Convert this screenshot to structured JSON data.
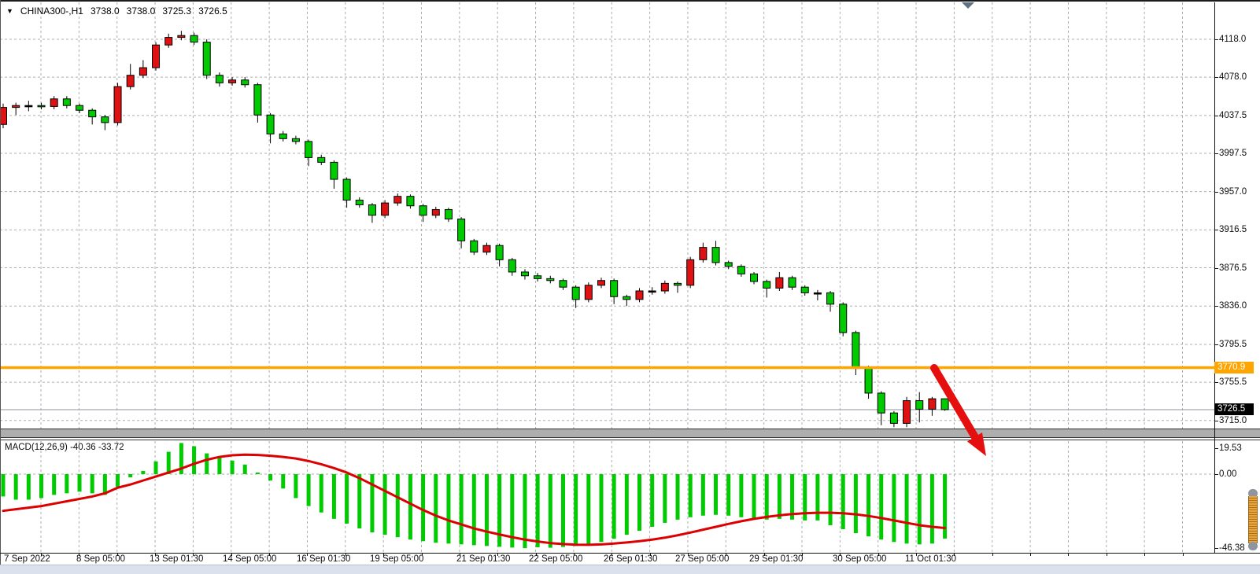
{
  "title": {
    "symbol_period": "CHINA300-,H1",
    "open": "3738.0",
    "high": "3738.0",
    "low": "3725.3",
    "close": "3726.5"
  },
  "price_axis": {
    "labels": [
      "4118.0",
      "4078.0",
      "4037.5",
      "3997.5",
      "3957.0",
      "3916.5",
      "3876.5",
      "3836.0",
      "3795.5",
      "3755.5",
      "3715.0"
    ],
    "hline_badge": "3770.9",
    "bid_badge": "3726.5"
  },
  "macd_panel": {
    "label": "MACD(12,26,9) -40.36 -33.72",
    "axis_labels": [
      "19.53",
      "0.00",
      "-46.38"
    ]
  },
  "time_axis": {
    "labels": [
      "7 Sep 2022",
      "8 Sep 05:00",
      "13 Sep 01:30",
      "14 Sep 05:00",
      "16 Sep 01:30",
      "19 Sep 05:00",
      "21 Sep 01:30",
      "22 Sep 05:00",
      "26 Sep 01:30",
      "27 Sep 05:00",
      "29 Sep 01:30",
      "30 Sep 05:00",
      "11 Oct 01:30"
    ]
  },
  "colors": {
    "bull_candle": "#DE1212",
    "bear_candle": "#00CB00",
    "candle_outline": "#000000",
    "macd_histogram": "#00CB00",
    "macd_signal": "#DD0000",
    "hline": "#FFA500",
    "grid": "#aeaeae",
    "bid_line": "#8e959e",
    "arrow": "#e50f0f"
  },
  "annotations": {
    "arrow": "red-down-arrow pointing to continued decline"
  },
  "chart_data": {
    "type": "candlestick",
    "symbol": "CHINA300-",
    "timeframe": "H1",
    "note": "red = bullish, green = bearish (CN convention); price pane + MACD(12,26,9) pane",
    "price_axis_ticks": [
      4118.0,
      4078.0,
      4037.5,
      3997.5,
      3957.0,
      3916.5,
      3876.5,
      3836.0,
      3795.5,
      3755.5,
      3715.0
    ],
    "x_labels": [
      "7 Sep 2022",
      "8 Sep 05:00",
      "13 Sep 01:30",
      "14 Sep 05:00",
      "16 Sep 01:30",
      "19 Sep 05:00",
      "21 Sep 01:30",
      "22 Sep 05:00",
      "26 Sep 01:30",
      "27 Sep 05:00",
      "29 Sep 01:30",
      "30 Sep 05:00",
      "11 Oct 01:30"
    ],
    "overlays": {
      "horizontal_line": 3770.9,
      "bid_line": 3726.5
    },
    "candles": {
      "open": [
        4028,
        4046,
        4048,
        4048,
        4047,
        4055,
        4048,
        4043,
        4036,
        4030,
        4068,
        4080,
        4088,
        4112,
        4120,
        4122,
        4115,
        4080,
        4072,
        4075,
        4070,
        4038,
        4018,
        4013,
        4010,
        3993,
        3988,
        3970,
        3948,
        3943,
        3932,
        3945,
        3952,
        3942,
        3932,
        3938,
        3928,
        3905,
        3893,
        3900,
        3885,
        3872,
        3868,
        3865,
        3863,
        3856,
        3843,
        3858,
        3863,
        3846,
        3843,
        3852,
        3852,
        3860,
        3858,
        3885,
        3898,
        3882,
        3878,
        3870,
        3862,
        3855,
        3866,
        3856,
        3850,
        3850,
        3838,
        3808,
        3771,
        3744,
        3723,
        3712,
        3736,
        3727,
        3738
      ],
      "high": [
        4050,
        4051,
        4053,
        4051,
        4058,
        4058,
        4050,
        4045,
        4038,
        4072,
        4092,
        4096,
        4115,
        4124,
        4127,
        4125,
        4118,
        4083,
        4078,
        4078,
        4072,
        4040,
        4021,
        4016,
        4012,
        3996,
        3990,
        3972,
        3951,
        3945,
        3948,
        3955,
        3954,
        3944,
        3941,
        3940,
        3930,
        3907,
        3903,
        3902,
        3887,
        3875,
        3871,
        3868,
        3865,
        3858,
        3861,
        3866,
        3865,
        3848,
        3855,
        3856,
        3863,
        3862,
        3888,
        3903,
        3905,
        3884,
        3880,
        3872,
        3864,
        3872,
        3868,
        3858,
        3853,
        3852,
        3840,
        3810,
        3773,
        3746,
        3725,
        3740,
        3745,
        3740,
        3738
      ],
      "low": [
        4024,
        4038,
        4042,
        4044,
        4044,
        4045,
        4040,
        4028,
        4022,
        4027,
        4065,
        4077,
        4085,
        4109,
        4117,
        4112,
        4076,
        4068,
        4069,
        4067,
        4030,
        4008,
        4010,
        4007,
        3984,
        3985,
        3960,
        3940,
        3940,
        3924,
        3929,
        3942,
        3939,
        3925,
        3929,
        3925,
        3897,
        3890,
        3890,
        3878,
        3868,
        3864,
        3862,
        3860,
        3853,
        3834,
        3840,
        3855,
        3838,
        3836,
        3840,
        3848,
        3849,
        3850,
        3855,
        3882,
        3879,
        3875,
        3867,
        3859,
        3845,
        3852,
        3853,
        3847,
        3842,
        3830,
        3804,
        3763,
        3738,
        3710,
        3708,
        3708,
        3713,
        3720,
        3725.3
      ],
      "close": [
        4046,
        4048,
        4048,
        4047,
        4055,
        4048,
        4043,
        4036,
        4030,
        4068,
        4080,
        4088,
        4112,
        4120,
        4122,
        4115,
        4080,
        4072,
        4075,
        4070,
        4038,
        4018,
        4013,
        4010,
        3993,
        3988,
        3970,
        3948,
        3943,
        3932,
        3945,
        3952,
        3942,
        3932,
        3938,
        3928,
        3905,
        3893,
        3900,
        3885,
        3872,
        3868,
        3865,
        3863,
        3856,
        3843,
        3858,
        3863,
        3846,
        3843,
        3852,
        3852,
        3860,
        3858,
        3885,
        3898,
        3882,
        3878,
        3870,
        3862,
        3855,
        3866,
        3856,
        3850,
        3850,
        3838,
        3808,
        3771,
        3744,
        3723,
        3712,
        3736,
        3727,
        3738,
        3726.5
      ]
    },
    "macd": {
      "params": "12,26,9",
      "current_macd": -40.36,
      "current_signal": -33.72,
      "axis_ticks": [
        19.53,
        0.0,
        -46.38
      ],
      "histogram": [
        -14,
        -16,
        -16,
        -15,
        -13,
        -12,
        -11,
        -12,
        -13,
        -8,
        -2,
        2,
        8,
        14,
        19.5,
        17.5,
        13,
        11,
        8.5,
        6,
        1,
        -4,
        -9,
        -15,
        -20,
        -24,
        -28,
        -31,
        -34,
        -36.5,
        -38,
        -39.5,
        -41,
        -42,
        -43,
        -43.5,
        -44,
        -44.5,
        -45,
        -45.5,
        -46,
        -46.38,
        -45.8,
        -46.1,
        -45.6,
        -45,
        -44,
        -42.5,
        -40.5,
        -38,
        -35.5,
        -33,
        -30.5,
        -28.5,
        -27,
        -26,
        -25.5,
        -26,
        -27,
        -28,
        -28.5,
        -28,
        -28.5,
        -29,
        -29,
        -32,
        -34.5,
        -37,
        -39,
        -41,
        -42.5,
        -43.5,
        -44,
        -43.5,
        -40.36
      ],
      "signal": [
        -23,
        -22,
        -21,
        -20,
        -18.5,
        -17,
        -15.5,
        -14,
        -12,
        -8.5,
        -6.5,
        -4,
        -1.5,
        1,
        3.5,
        6.5,
        9,
        10.8,
        11.8,
        12.2,
        12,
        11.5,
        10.8,
        9.8,
        8.2,
        6.2,
        3.8,
        1,
        -2.5,
        -6.5,
        -10.5,
        -14.5,
        -18.5,
        -22.5,
        -26,
        -29,
        -31.5,
        -34,
        -36,
        -37.8,
        -39.5,
        -41,
        -42.2,
        -43.2,
        -43.8,
        -44.2,
        -44.3,
        -44,
        -43.5,
        -42.8,
        -42,
        -41,
        -39.8,
        -38.3,
        -36.6,
        -34.8,
        -33,
        -31.2,
        -29.5,
        -28,
        -26.8,
        -25.8,
        -25,
        -24.5,
        -24.2,
        -24.2,
        -24.5,
        -25.2,
        -26.2,
        -27.5,
        -29,
        -30.5,
        -32,
        -33,
        -33.72
      ]
    }
  }
}
